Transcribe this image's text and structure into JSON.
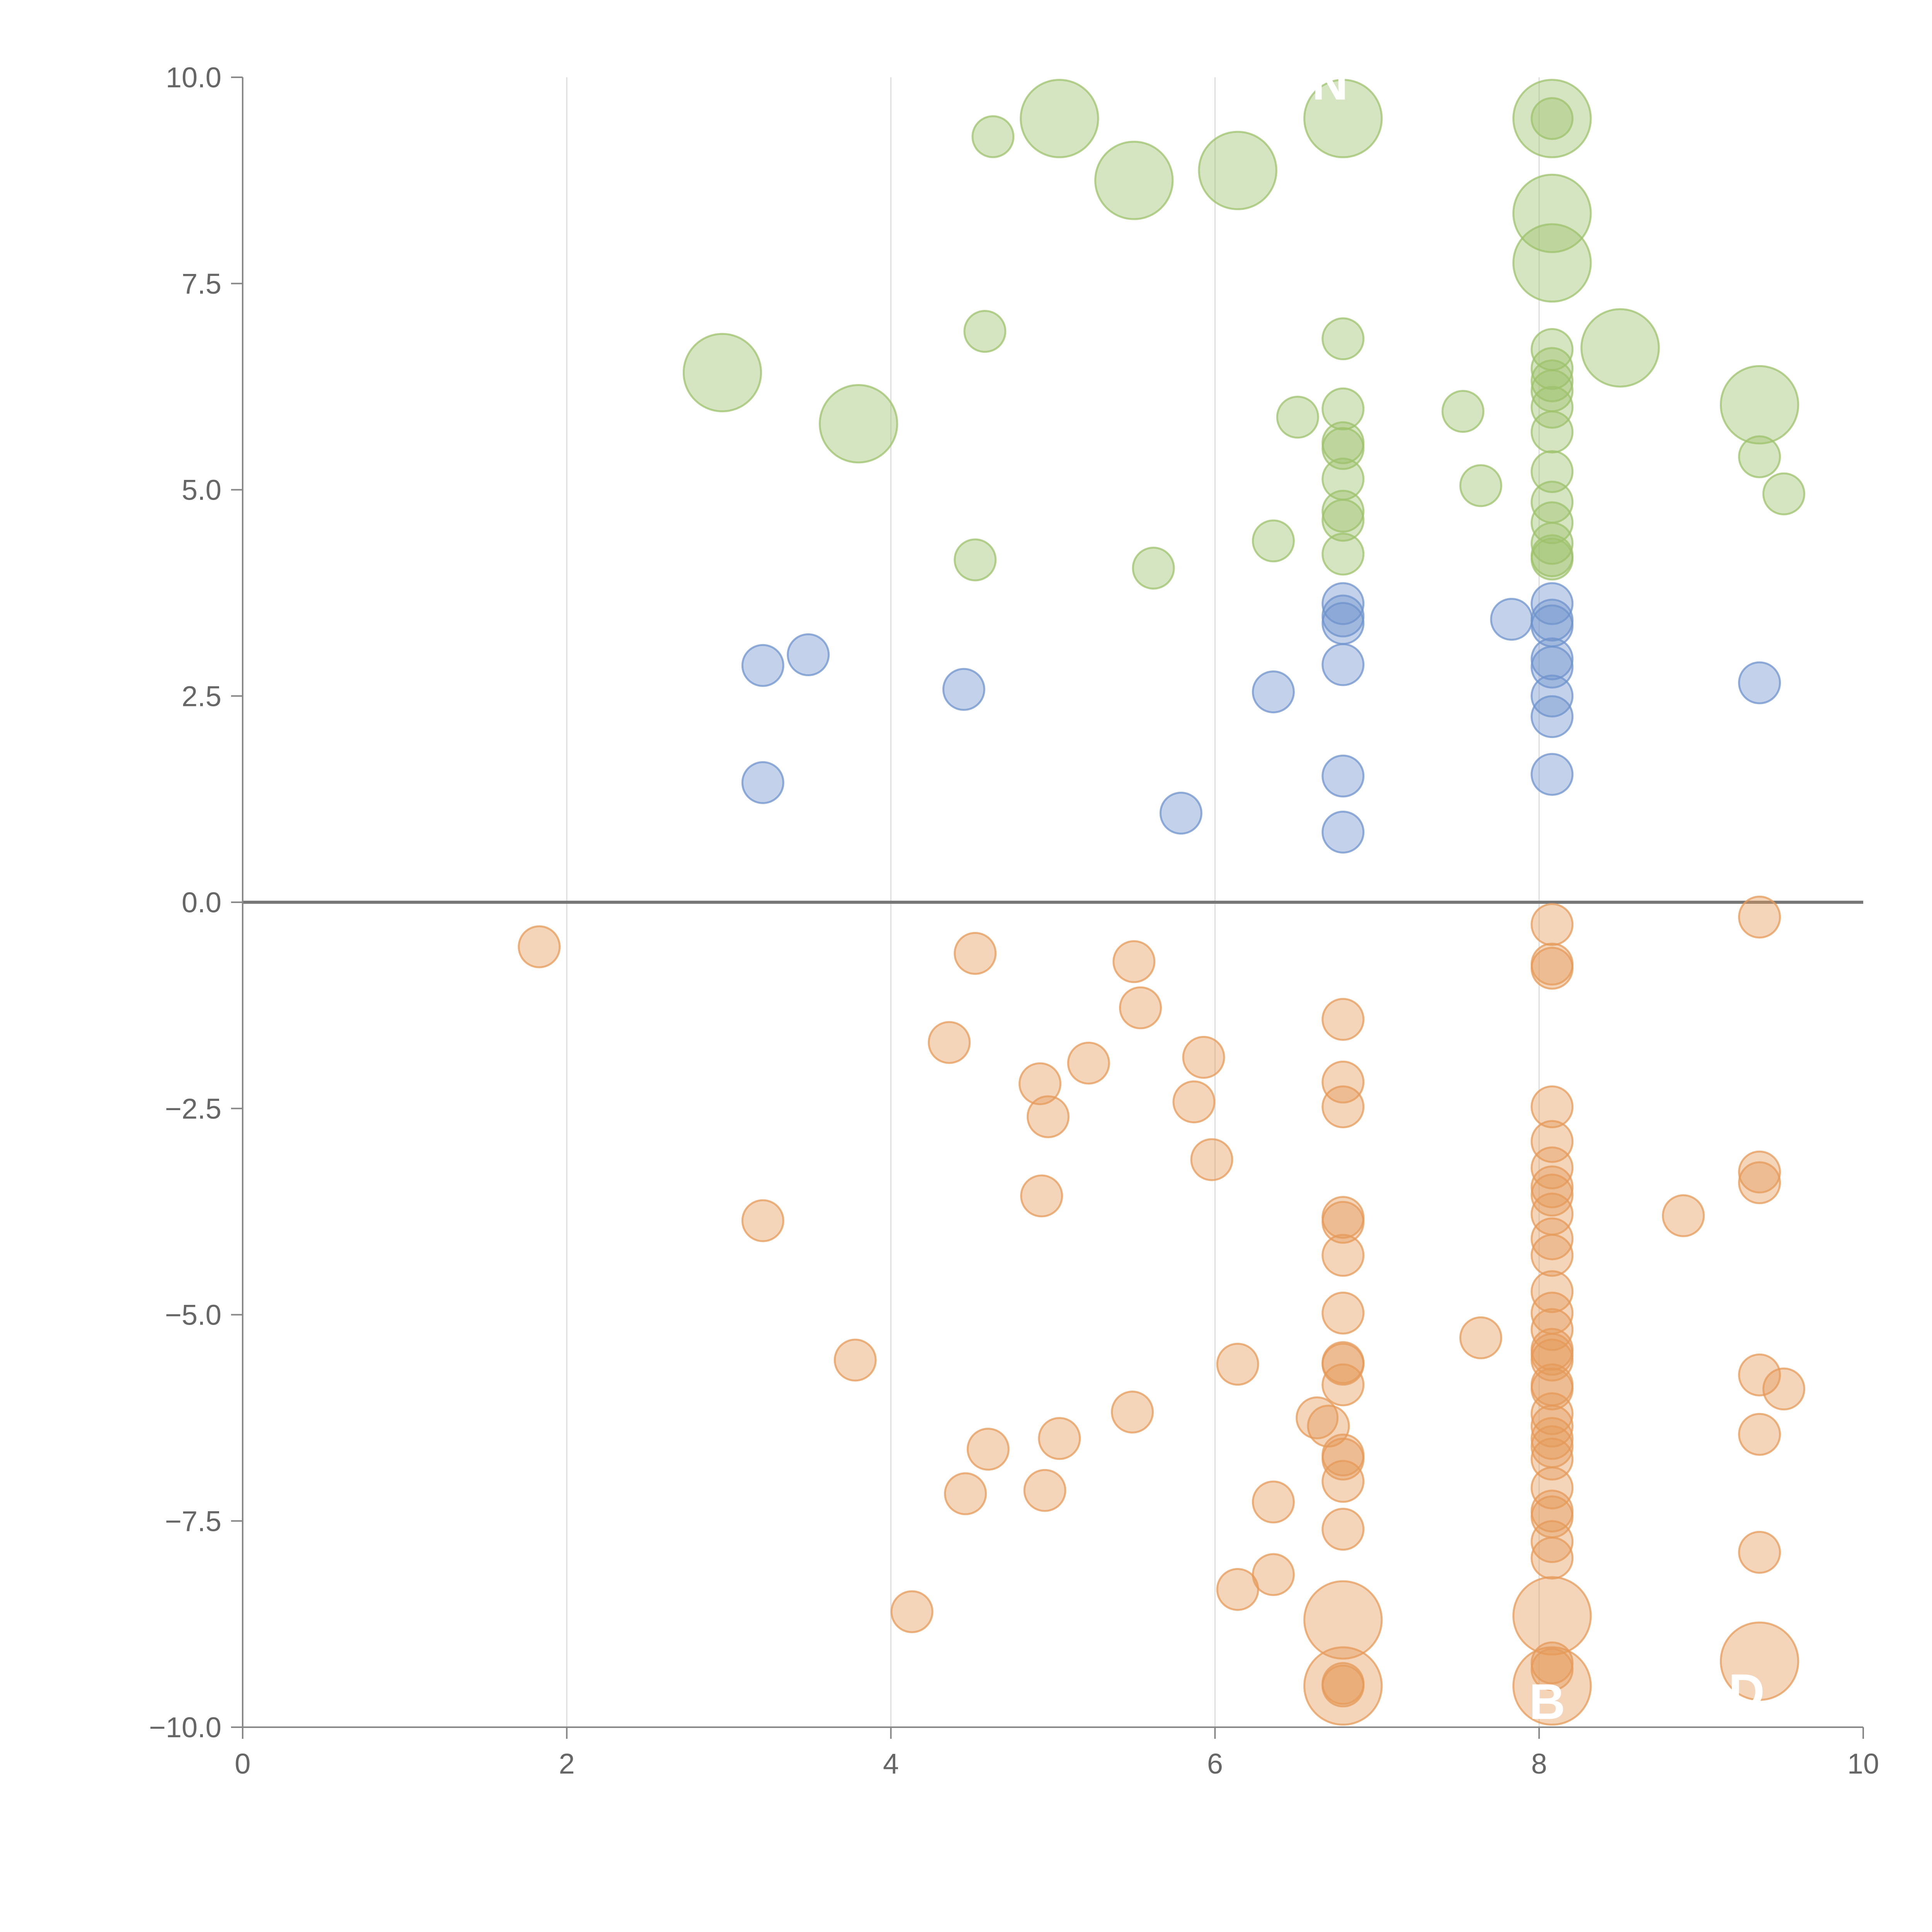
{
  "chart_data": {
    "type": "scatter",
    "title": "",
    "xlabel": "",
    "ylabel": "",
    "xlim": [
      0,
      10
    ],
    "ylim": [
      -10,
      10
    ],
    "x_ticks": [
      0,
      2,
      4,
      6,
      8,
      10
    ],
    "x_tick_labels": [
      "0",
      "2",
      "4",
      "6",
      "8",
      "10"
    ],
    "y_ticks": [
      10,
      7.5,
      5,
      2.5,
      0,
      -2.5,
      -5,
      -7.5,
      -10
    ],
    "y_tick_labels": [
      "10.0",
      "7.5",
      "5.0",
      "2.5",
      "0.0",
      "−2.5",
      "−5.0",
      "−7.5",
      "−10.0"
    ],
    "colors": {
      "green": "#9dc26c",
      "blue": "#6f93cc",
      "orange": "#e59a5a"
    },
    "series": [
      {
        "name": "green",
        "color": "#9dc26c",
        "points": [
          [
            4.63,
            9.28,
            1
          ],
          [
            5.04,
            9.5,
            2.4
          ],
          [
            5.5,
            8.75,
            2.4
          ],
          [
            6.14,
            8.87,
            2.4
          ],
          [
            6.79,
            9.5,
            2.4
          ],
          [
            8.08,
            9.5,
            2.4
          ],
          [
            8.08,
            9.5,
            1
          ],
          [
            8.08,
            8.35,
            2.4
          ],
          [
            8.08,
            7.75,
            2.4
          ],
          [
            2.96,
            6.42,
            2.4
          ],
          [
            3.8,
            5.8,
            2.4
          ],
          [
            4.58,
            6.92,
            1
          ],
          [
            8.5,
            6.72,
            2.4
          ],
          [
            9.36,
            6.03,
            2.4
          ],
          [
            6.79,
            6.83,
            1
          ],
          [
            6.79,
            5.98,
            1
          ],
          [
            6.79,
            5.57,
            1
          ],
          [
            6.79,
            5.5,
            1
          ],
          [
            6.79,
            5.13,
            1
          ],
          [
            6.79,
            4.74,
            1
          ],
          [
            6.79,
            4.63,
            1
          ],
          [
            6.79,
            4.22,
            1
          ],
          [
            6.51,
            5.88,
            1
          ],
          [
            7.53,
            5.95,
            1
          ],
          [
            7.64,
            5.05,
            1
          ],
          [
            6.36,
            4.38,
            1
          ],
          [
            5.62,
            4.05,
            1
          ],
          [
            4.52,
            4.15,
            1
          ],
          [
            8.08,
            6.7,
            1
          ],
          [
            8.08,
            6.47,
            1
          ],
          [
            8.08,
            6.32,
            1
          ],
          [
            8.08,
            6.2,
            1
          ],
          [
            8.08,
            6.0,
            1
          ],
          [
            8.08,
            5.7,
            1
          ],
          [
            8.08,
            5.22,
            1
          ],
          [
            8.08,
            4.85,
            1
          ],
          [
            8.08,
            4.6,
            1
          ],
          [
            8.08,
            4.35,
            1
          ],
          [
            8.08,
            4.2,
            1
          ],
          [
            8.08,
            4.16,
            1
          ],
          [
            9.36,
            5.4,
            1
          ],
          [
            9.51,
            4.95,
            1
          ]
        ]
      },
      {
        "name": "blue",
        "color": "#6f93cc",
        "points": [
          [
            3.21,
            2.87,
            1
          ],
          [
            3.49,
            3.0,
            1
          ],
          [
            4.45,
            2.58,
            1
          ],
          [
            3.21,
            1.45,
            1
          ],
          [
            6.36,
            2.55,
            1
          ],
          [
            5.79,
            1.08,
            1
          ],
          [
            6.79,
            3.62,
            1
          ],
          [
            6.79,
            3.47,
            1
          ],
          [
            6.79,
            3.38,
            1
          ],
          [
            6.79,
            2.88,
            1
          ],
          [
            6.79,
            1.53,
            1
          ],
          [
            6.79,
            0.85,
            1
          ],
          [
            7.83,
            3.43,
            1
          ],
          [
            8.08,
            3.62,
            1
          ],
          [
            8.08,
            3.42,
            1
          ],
          [
            8.08,
            3.35,
            1
          ],
          [
            8.08,
            2.95,
            1
          ],
          [
            8.08,
            2.85,
            1
          ],
          [
            8.08,
            2.5,
            1
          ],
          [
            8.08,
            2.25,
            1
          ],
          [
            8.08,
            1.55,
            1
          ],
          [
            9.36,
            2.66,
            1
          ]
        ]
      },
      {
        "name": "orange",
        "color": "#e59a5a",
        "points": [
          [
            1.83,
            -0.54,
            1
          ],
          [
            4.52,
            -0.62,
            1
          ],
          [
            5.5,
            -0.72,
            1
          ],
          [
            5.54,
            -1.28,
            1
          ],
          [
            4.36,
            -1.7,
            1
          ],
          [
            5.22,
            -1.95,
            1
          ],
          [
            5.93,
            -1.88,
            1
          ],
          [
            4.92,
            -2.2,
            1
          ],
          [
            4.97,
            -2.6,
            1
          ],
          [
            5.87,
            -2.42,
            1
          ],
          [
            5.98,
            -3.12,
            1
          ],
          [
            4.93,
            -3.56,
            1
          ],
          [
            3.21,
            -3.86,
            1
          ],
          [
            3.78,
            -5.55,
            1
          ],
          [
            6.14,
            -5.6,
            1
          ],
          [
            5.49,
            -6.18,
            1
          ],
          [
            4.6,
            -6.63,
            1
          ],
          [
            5.04,
            -6.5,
            1
          ],
          [
            4.46,
            -7.17,
            1
          ],
          [
            4.95,
            -7.13,
            1
          ],
          [
            4.13,
            -8.6,
            1
          ],
          [
            6.36,
            -7.27,
            1
          ],
          [
            6.36,
            -8.15,
            1
          ],
          [
            6.14,
            -8.33,
            1
          ],
          [
            6.63,
            -6.25,
            1
          ],
          [
            6.7,
            -6.35,
            1
          ],
          [
            6.79,
            -1.42,
            1
          ],
          [
            6.79,
            -2.18,
            1
          ],
          [
            6.79,
            -2.48,
            1
          ],
          [
            6.79,
            -3.82,
            1
          ],
          [
            6.79,
            -3.88,
            1
          ],
          [
            6.79,
            -4.28,
            1
          ],
          [
            6.79,
            -4.98,
            1
          ],
          [
            6.79,
            -5.58,
            1
          ],
          [
            6.79,
            -5.6,
            1
          ],
          [
            6.79,
            -5.85,
            1
          ],
          [
            6.79,
            -6.7,
            1
          ],
          [
            6.79,
            -6.75,
            1
          ],
          [
            6.79,
            -7.02,
            1
          ],
          [
            6.79,
            -7.6,
            1
          ],
          [
            6.79,
            -9.5,
            1
          ],
          [
            6.79,
            -9.47,
            1
          ],
          [
            6.79,
            -8.7,
            2.4
          ],
          [
            6.79,
            -9.5,
            2.4
          ],
          [
            7.64,
            -5.28,
            1
          ],
          [
            8.89,
            -3.8,
            1
          ],
          [
            8.08,
            -0.27,
            1
          ],
          [
            8.08,
            -0.75,
            1
          ],
          [
            8.08,
            -0.8,
            1
          ],
          [
            8.08,
            -2.48,
            1
          ],
          [
            8.08,
            -2.9,
            1
          ],
          [
            8.08,
            -3.22,
            1
          ],
          [
            8.08,
            -3.45,
            1
          ],
          [
            8.08,
            -3.55,
            1
          ],
          [
            8.08,
            -3.78,
            1
          ],
          [
            8.08,
            -4.08,
            1
          ],
          [
            8.08,
            -4.28,
            1
          ],
          [
            8.08,
            -4.72,
            1
          ],
          [
            8.08,
            -4.98,
            1
          ],
          [
            8.08,
            -5.18,
            1
          ],
          [
            8.08,
            -5.42,
            1
          ],
          [
            8.08,
            -5.48,
            1
          ],
          [
            8.08,
            -5.55,
            1
          ],
          [
            8.08,
            -5.85,
            1
          ],
          [
            8.08,
            -5.9,
            1
          ],
          [
            8.08,
            -6.2,
            1
          ],
          [
            8.08,
            -6.35,
            1
          ],
          [
            8.08,
            -6.5,
            1
          ],
          [
            8.08,
            -6.6,
            1
          ],
          [
            8.08,
            -6.75,
            1
          ],
          [
            8.08,
            -7.1,
            1
          ],
          [
            8.08,
            -7.38,
            1
          ],
          [
            8.08,
            -7.45,
            1
          ],
          [
            8.08,
            -7.75,
            1
          ],
          [
            8.08,
            -7.95,
            1
          ],
          [
            8.08,
            -9.22,
            1
          ],
          [
            8.08,
            -9.3,
            1
          ],
          [
            8.08,
            -8.65,
            2.4
          ],
          [
            8.08,
            -9.5,
            2.4
          ],
          [
            9.36,
            -0.18,
            1
          ],
          [
            9.36,
            -3.27,
            1
          ],
          [
            9.36,
            -3.4,
            1
          ],
          [
            9.36,
            -5.73,
            1
          ],
          [
            9.51,
            -5.9,
            1
          ],
          [
            9.36,
            -6.45,
            1
          ],
          [
            9.36,
            -7.88,
            1
          ],
          [
            9.36,
            -9.2,
            2.4
          ]
        ]
      }
    ],
    "annotations": [
      {
        "text": "N",
        "x": 6.71,
        "y": 9.73
      },
      {
        "text": "B",
        "x": 8.05,
        "y": -9.9
      },
      {
        "text": "D",
        "x": 9.28,
        "y": -9.78
      }
    ]
  }
}
